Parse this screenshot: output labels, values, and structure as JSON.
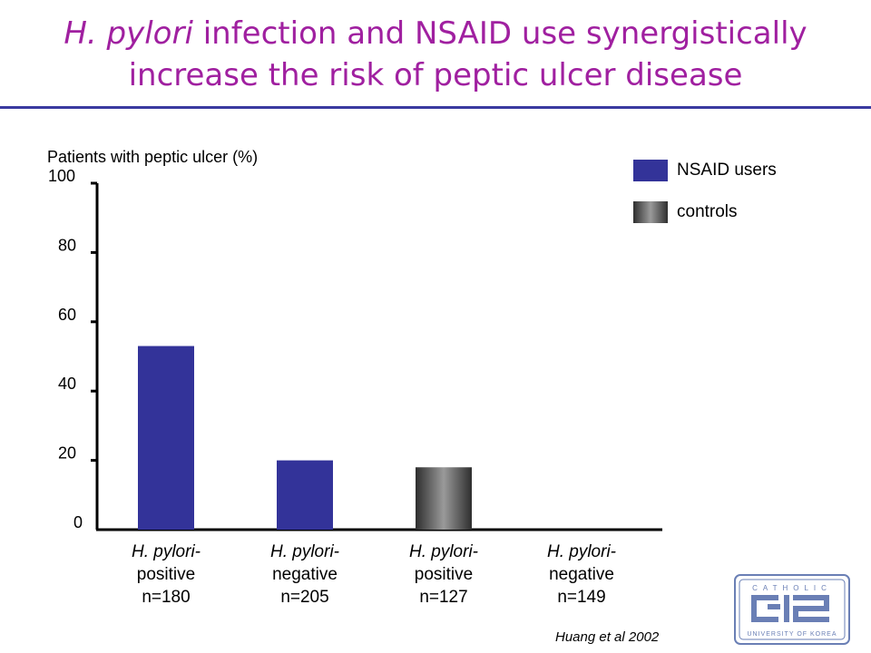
{
  "title": {
    "italic_part": "H. pylori",
    "rest_line1": " infection and NSAID use synergistically",
    "line2": "increase the risk of peptic ulcer disease"
  },
  "colors": {
    "title": "#a020a0",
    "nsaid": "#333399",
    "controls_dark": "#2e2e2e",
    "controls_light": "#9a9a9a",
    "rule": "#3a3aa0",
    "seal": "#6a7fb5"
  },
  "legend": [
    {
      "label": "NSAID users",
      "color": "#333399"
    },
    {
      "label": "controls",
      "color": "gradient-gray"
    }
  ],
  "source": "Huang et al 2002",
  "seal": {
    "text_top": "CATHOLIC",
    "text_bottom": "UNIVERSITY OF KOREA"
  },
  "chart_data": {
    "type": "bar",
    "ylabel": "Patients with peptic ulcer (%)",
    "ylim": [
      0,
      100
    ],
    "yticks": [
      0,
      20,
      40,
      60,
      80,
      100
    ],
    "categories": [
      {
        "line1": "H. pylori-",
        "line2": "positive",
        "line3": "n=180"
      },
      {
        "line1": "H. pylori-",
        "line2": "negative",
        "line3": "n=205"
      },
      {
        "line1": "H. pylori-",
        "line2": "positive",
        "line3": "n=127"
      },
      {
        "line1": "H. pylori-",
        "line2": "negative",
        "line3": "n=149"
      }
    ],
    "values": [
      53,
      20,
      18,
      0
    ],
    "series_of_bar": [
      "NSAID users",
      "NSAID users",
      "controls",
      "controls"
    ],
    "legend_position": "top-right",
    "grid": false
  }
}
